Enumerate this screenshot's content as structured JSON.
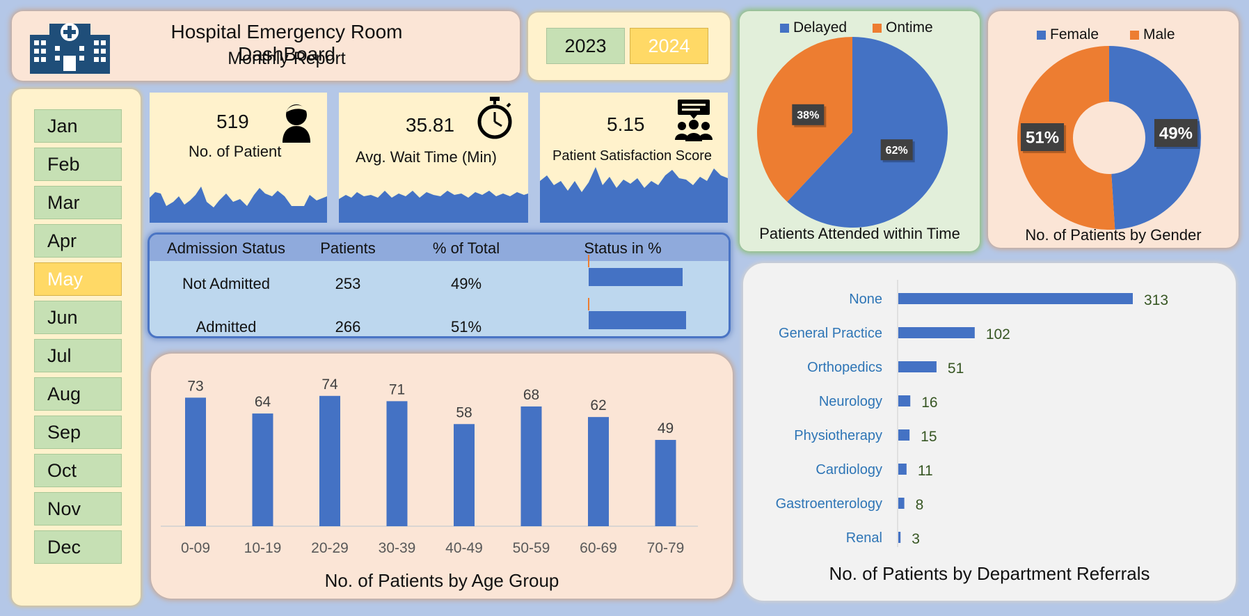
{
  "header": {
    "title": "Hospital  Emergency Room DashBoard",
    "subtitle": "Monthly Report",
    "logo_icon": "hospital-icon"
  },
  "years": [
    {
      "label": "2023",
      "selected": false
    },
    {
      "label": "2024",
      "selected": true
    }
  ],
  "months": [
    {
      "label": "Jan",
      "selected": false
    },
    {
      "label": "Feb",
      "selected": false
    },
    {
      "label": "Mar",
      "selected": false
    },
    {
      "label": "Apr",
      "selected": false
    },
    {
      "label": "May",
      "selected": true
    },
    {
      "label": "Jun",
      "selected": false
    },
    {
      "label": "Jul",
      "selected": false
    },
    {
      "label": "Aug",
      "selected": false
    },
    {
      "label": "Sep",
      "selected": false
    },
    {
      "label": "Oct",
      "selected": false
    },
    {
      "label": "Nov",
      "selected": false
    },
    {
      "label": "Dec",
      "selected": false
    }
  ],
  "kpis": {
    "patients": {
      "value": "519",
      "label": "No. of Patient",
      "icon": "patient-icon"
    },
    "wait": {
      "value": "35.81",
      "label": "Avg. Wait Time (Min)",
      "icon": "stopwatch-icon"
    },
    "satisfaction": {
      "value": "5.15",
      "label": "Patient Satisfaction Score",
      "icon": "feedback-group-icon"
    }
  },
  "admission": {
    "headers": [
      "Admission Status",
      "Patients",
      "% of Total",
      "Status in %"
    ],
    "rows": [
      {
        "status": "Not Admitted",
        "patients": "253",
        "pct": "49%",
        "fraction": 0.49
      },
      {
        "status": "Admitted",
        "patients": "266",
        "pct": "51%",
        "fraction": 0.51
      }
    ]
  },
  "colors": {
    "blue": "#4472c4",
    "orange": "#ed7d31"
  },
  "chart_data": [
    {
      "type": "bar",
      "title": "No. of Patients by Age Group",
      "categories": [
        "0-09",
        "10-19",
        "20-29",
        "30-39",
        "40-49",
        "50-59",
        "60-69",
        "70-79"
      ],
      "values": [
        73,
        64,
        74,
        71,
        58,
        68,
        62,
        49
      ],
      "ylim": [
        0,
        80
      ]
    },
    {
      "type": "pie",
      "title": "Patients Attended within Time",
      "categories": [
        "Delayed",
        "Ontime"
      ],
      "values": [
        62,
        38
      ],
      "labels": [
        "62%",
        "38%"
      ],
      "legend": "top"
    },
    {
      "type": "pie",
      "title": "No. of Patients by Gender",
      "categories": [
        "Female",
        "Male"
      ],
      "values": [
        49,
        51
      ],
      "labels": [
        "49%",
        "51%"
      ],
      "legend": "top",
      "donut": true
    },
    {
      "type": "bar",
      "orientation": "horizontal",
      "title": "No. of Patients by Department Referrals",
      "categories": [
        "None",
        "General Practice",
        "Orthopedics",
        "Neurology",
        "Physiotherapy",
        "Cardiology",
        "Gastroenterology",
        "Renal"
      ],
      "values": [
        313,
        102,
        51,
        16,
        15,
        11,
        8,
        3
      ]
    }
  ]
}
